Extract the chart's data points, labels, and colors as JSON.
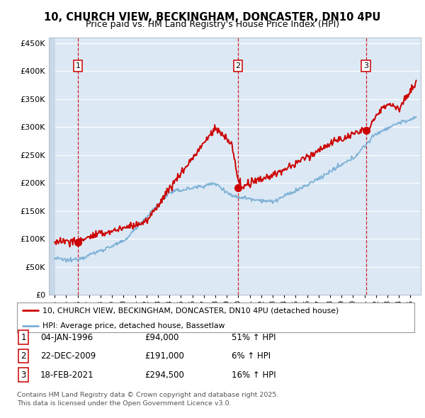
{
  "title_line1": "10, CHURCH VIEW, BECKINGHAM, DONCASTER, DN10 4PU",
  "title_line2": "Price paid vs. HM Land Registry's House Price Index (HPI)",
  "red_line_color": "#cc0000",
  "blue_line_color": "#7aaed4",
  "plot_bg_color": "#dce9f5",
  "hatch_bg_color": "#c8d8e8",
  "legend_line1": "10, CHURCH VIEW, BECKINGHAM, DONCASTER, DN10 4PU (detached house)",
  "legend_line2": "HPI: Average price, detached house, Bassetlaw",
  "sale1_date": "04-JAN-1996",
  "sale1_price": 94000,
  "sale1_label": "51% ↑ HPI",
  "sale2_date": "22-DEC-2009",
  "sale2_price": 191000,
  "sale2_label": "6% ↑ HPI",
  "sale3_date": "18-FEB-2021",
  "sale3_price": 294500,
  "sale3_label": "16% ↑ HPI",
  "footer": "Contains HM Land Registry data © Crown copyright and database right 2025.\nThis data is licensed under the Open Government Licence v3.0.",
  "ylim": [
    0,
    460000
  ],
  "sale_years": [
    1996.04,
    2009.98,
    2021.13
  ]
}
